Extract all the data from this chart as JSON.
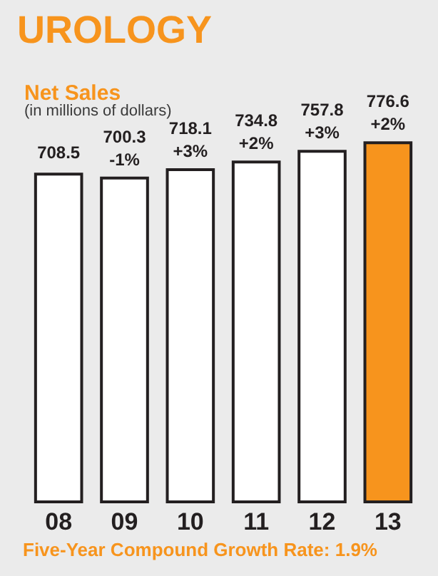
{
  "chart_data": {
    "type": "bar",
    "title": "UROLOGY",
    "subtitle": "Net Sales",
    "ylabel": "(in millions of dollars)",
    "categories": [
      "08",
      "09",
      "10",
      "11",
      "12",
      "13"
    ],
    "values": [
      708.5,
      700.3,
      718.1,
      734.8,
      757.8,
      776.6
    ],
    "colors": [
      "#ffffff",
      "#ffffff",
      "#ffffff",
      "#ffffff",
      "#ffffff",
      "#f7941d"
    ],
    "data_labels": true,
    "grid": false,
    "tick_labels": "x",
    "annotations": [
      {
        "text": "-1%",
        "x": "09",
        "y": 700.3
      },
      {
        "text": "+3%",
        "x": "10",
        "y": 718.1
      },
      {
        "text": "+2%",
        "x": "11",
        "y": 734.8
      },
      {
        "text": "+3%",
        "x": "12",
        "y": 757.8
      },
      {
        "text": "+2%",
        "x": "13",
        "y": 776.6
      },
      "Five-Year Compound Growth Rate: 1.9%"
    ]
  }
}
